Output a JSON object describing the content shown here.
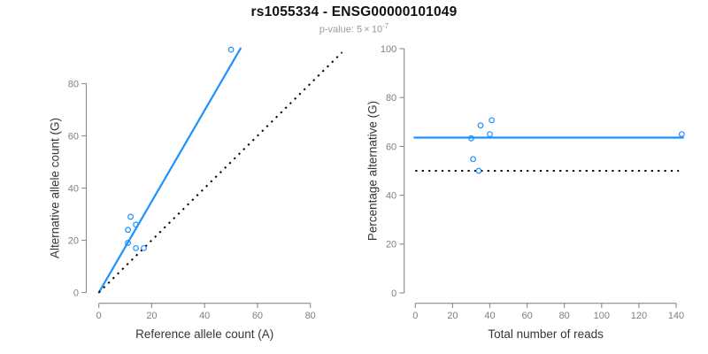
{
  "title": "rs1055334 - ENSG00000101049",
  "subtitle": {
    "prefix": "p-value: 5 × 10",
    "exponent": "-7"
  },
  "colors": {
    "accent_blue": "#1E90FF",
    "dotted_line": "#000000",
    "axis": "#8a8a8a",
    "tick_label": "#7f7f7f",
    "axis_title": "#363636",
    "background": "#ffffff"
  },
  "chart_data": [
    {
      "type": "scatter",
      "panel": "allele-counts",
      "xlabel": "Reference allele count (A)",
      "ylabel": "Alternative allele count (G)",
      "xticks": [
        0,
        20,
        40,
        60,
        80
      ],
      "yticks": [
        0,
        20,
        40,
        60,
        80
      ],
      "xlim": [
        0,
        93
      ],
      "ylim": [
        0,
        95
      ],
      "grid": false,
      "legend": "none",
      "points": [
        [
          12,
          29
        ],
        [
          14,
          26
        ],
        [
          11,
          24
        ],
        [
          11,
          19
        ],
        [
          14,
          17
        ],
        [
          17,
          17
        ],
        [
          50,
          93
        ]
      ],
      "lines": [
        {
          "name": "fit-line",
          "style": "solid",
          "color": "accent_blue",
          "width": 2.2,
          "from": [
            0,
            0
          ],
          "to": [
            53.6,
            93.5
          ]
        },
        {
          "name": "identity-line",
          "style": "dotted",
          "color": "dotted_line",
          "width": 2,
          "from": [
            0,
            0
          ],
          "to": [
            92,
            92
          ]
        }
      ]
    },
    {
      "type": "scatter",
      "panel": "percentage-vs-reads",
      "xlabel": "Total number of reads",
      "ylabel": "Percentage alternative (G)",
      "xticks": [
        0,
        20,
        40,
        60,
        80,
        100,
        120,
        140
      ],
      "yticks": [
        0,
        20,
        40,
        60,
        80,
        100
      ],
      "xlim": [
        0,
        145
      ],
      "ylim": [
        0,
        100
      ],
      "grid": false,
      "legend": "none",
      "points": [
        [
          41,
          70.7
        ],
        [
          35,
          68.6
        ],
        [
          40,
          65
        ],
        [
          30,
          63.3
        ],
        [
          31,
          54.8
        ],
        [
          34,
          50
        ],
        [
          143,
          65
        ]
      ],
      "lines": [
        {
          "name": "fit-line",
          "style": "solid",
          "color": "accent_blue",
          "width": 2.2,
          "from": [
            -0.5,
            63.6
          ],
          "to": [
            143.7,
            63.6
          ]
        },
        {
          "name": "expected-line",
          "style": "dotted",
          "color": "dotted_line",
          "width": 2,
          "from": [
            0,
            50
          ],
          "to": [
            141.5,
            50
          ]
        }
      ]
    }
  ]
}
